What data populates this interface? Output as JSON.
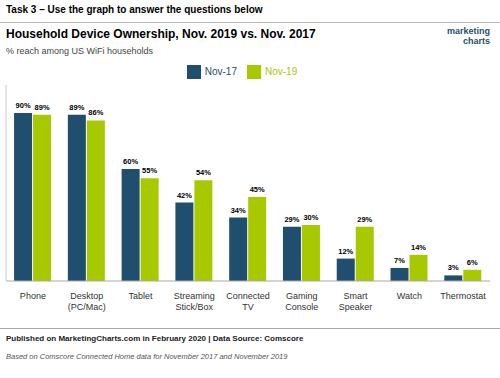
{
  "chart_data": {
    "type": "bar",
    "title": "Household Device Ownership, Nov. 2019 vs. Nov. 2017",
    "subtitle": "% reach among US WiFi households",
    "annotations": [
      "Task 3 – Use the graph to answer the questions below",
      "marketing",
      "charts",
      "Published on MarketingCharts.com in February 2020 | Data Source: Comscore",
      "Based on Comscore Connected Home data for November 2017 and November 2019"
    ],
    "categories": [
      "Phone",
      "Desktop\n(PC/Mac)",
      "Tablet",
      "Streaming\nStick/Box",
      "Connected\nTV",
      "Gaming\nConsole",
      "Smart\nSpeaker",
      "Watch",
      "Thermostat"
    ],
    "series": [
      {
        "name": "Nov-17",
        "color": "#1f4e6e",
        "values": [
          90,
          89,
          60,
          42,
          34,
          29,
          12,
          7,
          3
        ],
        "value_labels": [
          "90%",
          "89%",
          "60%",
          "42%",
          "34%",
          "29%",
          "12%",
          "7%",
          "3%"
        ]
      },
      {
        "name": "Nov-19",
        "color": "#a8c800",
        "values": [
          89,
          86,
          55,
          54,
          45,
          30,
          29,
          14,
          6
        ],
        "value_labels": [
          "89%",
          "86%",
          "55%",
          "54%",
          "45%",
          "30%",
          "29%",
          "14%",
          "6%"
        ]
      }
    ],
    "ylim": [
      0,
      105
    ],
    "grid": false,
    "legend": "top",
    "data_labels": true,
    "tick_labels": "x"
  }
}
